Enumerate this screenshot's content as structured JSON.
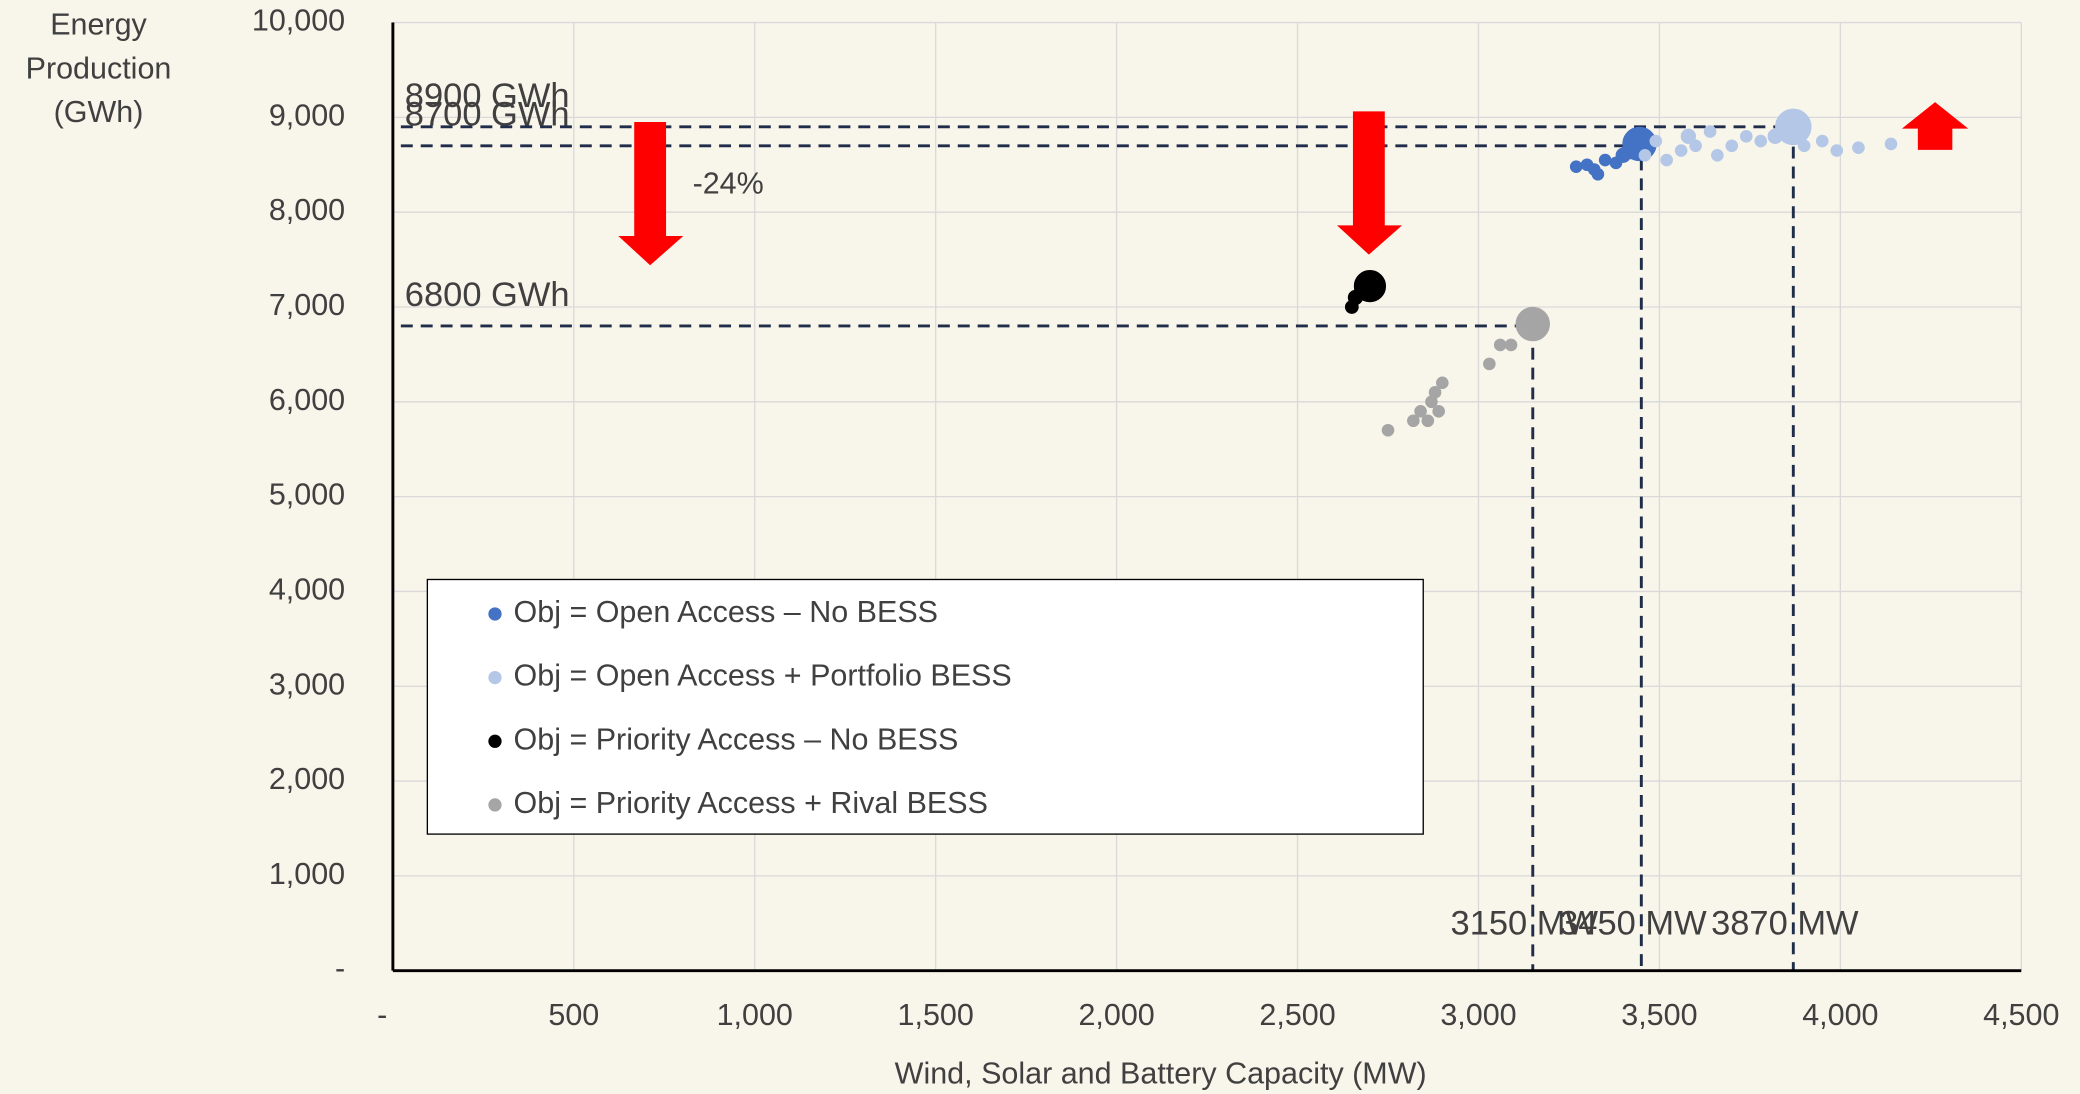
{
  "chart_data": {
    "type": "bubble",
    "ylabel": [
      "Energy",
      "Production",
      "(GWh)"
    ],
    "xlabel": "Wind, Solar and Battery Capacity (MW)",
    "xlim": [
      0,
      4500
    ],
    "ylim": [
      0,
      10000
    ],
    "xticks": [
      {
        "value": 0,
        "label": "-"
      },
      500,
      {
        "value": 1000,
        "label": "1,000"
      },
      {
        "value": 1500,
        "label": "1,500"
      },
      {
        "value": 2000,
        "label": "2,000"
      },
      {
        "value": 2500,
        "label": "2,500"
      },
      {
        "value": 3000,
        "label": "3,000"
      },
      {
        "value": 3500,
        "label": "3,500"
      },
      {
        "value": 4000,
        "label": "4,000"
      },
      {
        "value": 4500,
        "label": "4,500"
      }
    ],
    "yticks": [
      {
        "value": 0,
        "label": "-"
      },
      {
        "value": 1000,
        "label": "1,000"
      },
      {
        "value": 2000,
        "label": "2,000"
      },
      {
        "value": 3000,
        "label": "3,000"
      },
      {
        "value": 4000,
        "label": "4,000"
      },
      {
        "value": 5000,
        "label": "5,000"
      },
      {
        "value": 6000,
        "label": "6,000"
      },
      {
        "value": 7000,
        "label": "7,000"
      },
      {
        "value": 8000,
        "label": "8,000"
      },
      {
        "value": 9000,
        "label": "9,000"
      },
      {
        "value": 10000,
        "label": "10,000"
      }
    ],
    "grid": true,
    "legend": "lower left",
    "series": [
      {
        "name": "Obj = Open Access – No BESS",
        "color": "#4472c4",
        "x": [
          3270,
          3300,
          3320,
          3330,
          3350,
          3380,
          3400,
          3420,
          3445
        ],
        "values": [
          8480,
          8500,
          8450,
          8400,
          8550,
          8520,
          8600,
          8650,
          8720
        ],
        "sizes": [
          1,
          1,
          1,
          1,
          1,
          1,
          1.5,
          2,
          8
        ]
      },
      {
        "name": "Obj = Open Access + Portfolio BESS",
        "color": "#b4c7e7",
        "x": [
          3460,
          3490,
          3520,
          3560,
          3580,
          3600,
          3640,
          3660,
          3700,
          3740,
          3780,
          3820,
          3870,
          3900,
          3950,
          3990,
          4050,
          4140
        ],
        "values": [
          8600,
          8750,
          8550,
          8650,
          8800,
          8700,
          8850,
          8600,
          8700,
          8800,
          8750,
          8800,
          8900,
          8700,
          8750,
          8650,
          8680,
          8720
        ],
        "sizes": [
          1,
          1,
          1,
          1,
          1.5,
          1,
          1,
          1,
          1,
          1,
          1,
          1.5,
          9,
          1,
          1,
          1,
          1,
          1
        ]
      },
      {
        "name": "Obj = Priority Access – No BESS",
        "color": "#000000",
        "x": [
          2650,
          2660,
          2700
        ],
        "values": [
          7000,
          7100,
          7220
        ],
        "sizes": [
          1.2,
          1.5,
          7
        ]
      },
      {
        "name": "Obj = Priority Access + Rival BESS",
        "color": "#a5a5a5",
        "x": [
          2750,
          2820,
          2840,
          2860,
          2870,
          2880,
          2890,
          2900,
          3030,
          3060,
          3090,
          3150
        ],
        "values": [
          5700,
          5800,
          5900,
          5800,
          6000,
          6100,
          5900,
          6200,
          6400,
          6600,
          6600,
          6820
        ],
        "sizes": [
          1,
          1,
          1,
          1,
          1,
          1,
          1,
          1,
          1,
          1,
          1,
          8
        ]
      }
    ],
    "reference_lines": [
      {
        "y": 8900,
        "x": 3870,
        "y_label": "8900 GWh",
        "x_label": "3870 MW"
      },
      {
        "y": 8700,
        "x": 3450,
        "y_label": "8700 GWh",
        "x_label": "3450 MW"
      },
      {
        "y": 6800,
        "x": 3150,
        "y_label": "6800 GWh",
        "x_label": "3150 MW"
      }
    ],
    "annotation": "-24%"
  }
}
